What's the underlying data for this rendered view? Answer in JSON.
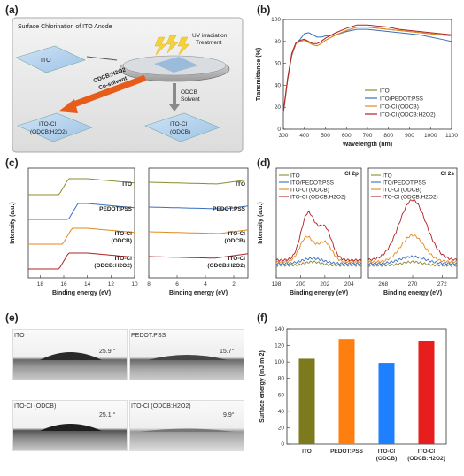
{
  "panels": {
    "a": "(a)",
    "b": "(b)",
    "c": "(c)",
    "d": "(d)",
    "e": "(e)",
    "f": "(f)"
  },
  "scheme": {
    "title": "Surface Chlorination of ITO Anode",
    "ito": "ITO",
    "uv": "UV irradiation",
    "uv2": "Treatment",
    "odcb": "ODCB",
    "solvent": "Solvent",
    "cosolvent1": "ODCB:H2O2",
    "cosolvent2": "Co-solvent",
    "itocl_h2o2_1": "ITO-Cl",
    "itocl_h2o2_2": "(ODCB:H2O2)",
    "itocl_odcb_1": "ITO-Cl",
    "itocl_odcb_2": "(ODCB)"
  },
  "legend4": [
    "ITO",
    "ITO/PEDOT:PSS",
    "ITO-Cl (ODCB)",
    "ITO-Cl (ODCB:H2O2)"
  ],
  "colors": {
    "ito": "#8b8b2e",
    "pedot": "#3a6fc0",
    "odcb": "#e08a1e",
    "h2o2": "#b02020",
    "bar_ito": "#7d7a1e",
    "bar_pedot": "#ff7f0e",
    "bar_odcb": "#1e7fff",
    "bar_h2o2": "#e81e1e"
  },
  "chart_data": [
    {
      "type": "line",
      "panel": "b",
      "xlabel": "Wavelength (nm)",
      "ylabel": "Transmittance (%)",
      "xlim": [
        300,
        1100
      ],
      "ylim": [
        0,
        100
      ],
      "xticks": [
        300,
        400,
        500,
        600,
        700,
        800,
        900,
        1000,
        1100
      ],
      "yticks": [
        0,
        20,
        40,
        60,
        80,
        100
      ],
      "x": [
        300,
        320,
        340,
        360,
        380,
        400,
        420,
        440,
        460,
        480,
        500,
        550,
        600,
        650,
        700,
        750,
        800,
        850,
        900,
        950,
        1000,
        1050,
        1100
      ],
      "series": [
        {
          "name": "ITO",
          "values": [
            15,
            45,
            68,
            78,
            80,
            81,
            79,
            77,
            76,
            78,
            81,
            86,
            90,
            93,
            93,
            92,
            91,
            90,
            89,
            88,
            87,
            86,
            85
          ]
        },
        {
          "name": "ITO/PEDOT:PSS",
          "values": [
            14,
            44,
            67,
            78,
            82,
            87,
            88,
            86,
            84,
            84,
            85,
            86,
            89,
            91,
            91,
            90,
            89,
            88,
            87,
            86,
            84,
            82,
            80
          ]
        },
        {
          "name": "ITO-Cl (ODCB)",
          "values": [
            15,
            45,
            68,
            78,
            80,
            81,
            79,
            77,
            76,
            78,
            81,
            86,
            90,
            93,
            93,
            92,
            91,
            90,
            89,
            88,
            87,
            86,
            85
          ]
        },
        {
          "name": "ITO-Cl (ODCB:H2O2)",
          "values": [
            16,
            46,
            69,
            79,
            81,
            82,
            80,
            78,
            78,
            80,
            83,
            88,
            92,
            95,
            95,
            94,
            93,
            91,
            90,
            89,
            88,
            87,
            86
          ]
        }
      ]
    },
    {
      "type": "line",
      "panel": "c-left",
      "xlabel": "Binding energy (eV)",
      "ylabel": "Intensity (a.u.)",
      "xlim": [
        19,
        10
      ],
      "xticks": [
        18,
        16,
        14,
        12,
        10
      ],
      "labels": [
        "ITO",
        "PEDOT:PSS",
        "ITO-Cl\n(ODCB)",
        "ITO-Cl\n(ODCB:H2O2)"
      ]
    },
    {
      "type": "line",
      "panel": "c-right",
      "xlabel": "Binding energy (eV)",
      "xlim": [
        8,
        1
      ],
      "xticks": [
        8,
        6,
        4,
        2
      ],
      "labels": [
        "ITO",
        "PEDOT:PSS",
        "ITO-Cl\n(ODCB)",
        "ITO-Cl\n(ODCB:H2O2)"
      ]
    },
    {
      "type": "line",
      "panel": "d-left",
      "title": "Cl 2p",
      "xlabel": "Binding energy (eV)",
      "ylabel": "Intensity (a.u.)",
      "xlim": [
        198,
        205
      ],
      "xticks": [
        198,
        200,
        202,
        204
      ]
    },
    {
      "type": "line",
      "panel": "d-right",
      "title": "Cl 2s",
      "xlabel": "Binding energy (eV)",
      "xlim": [
        267,
        273
      ],
      "xticks": [
        268,
        270,
        272
      ]
    },
    {
      "type": "bar",
      "panel": "f",
      "categories": [
        "ITO",
        "PEDOT:PSS",
        "ITO-Cl\n(ODCB)",
        "ITO-Cl\n(ODCB:H2O2)"
      ],
      "values": [
        104,
        128,
        99,
        126
      ],
      "ylabel": "Surface energy (mJ m-2)",
      "ylim": [
        0,
        140
      ],
      "yticks": [
        0,
        20,
        40,
        60,
        80,
        100,
        120,
        140
      ]
    }
  ],
  "contact": [
    {
      "name": "ITO",
      "angle": "25.9 °"
    },
    {
      "name": "PEDOT:PSS",
      "angle": "15.7°"
    },
    {
      "name": "ITO-Cl (ODCB)",
      "angle": "25.1 °"
    },
    {
      "name": "ITO-Cl (ODCB:H2O2)",
      "angle": "9.9°"
    }
  ]
}
